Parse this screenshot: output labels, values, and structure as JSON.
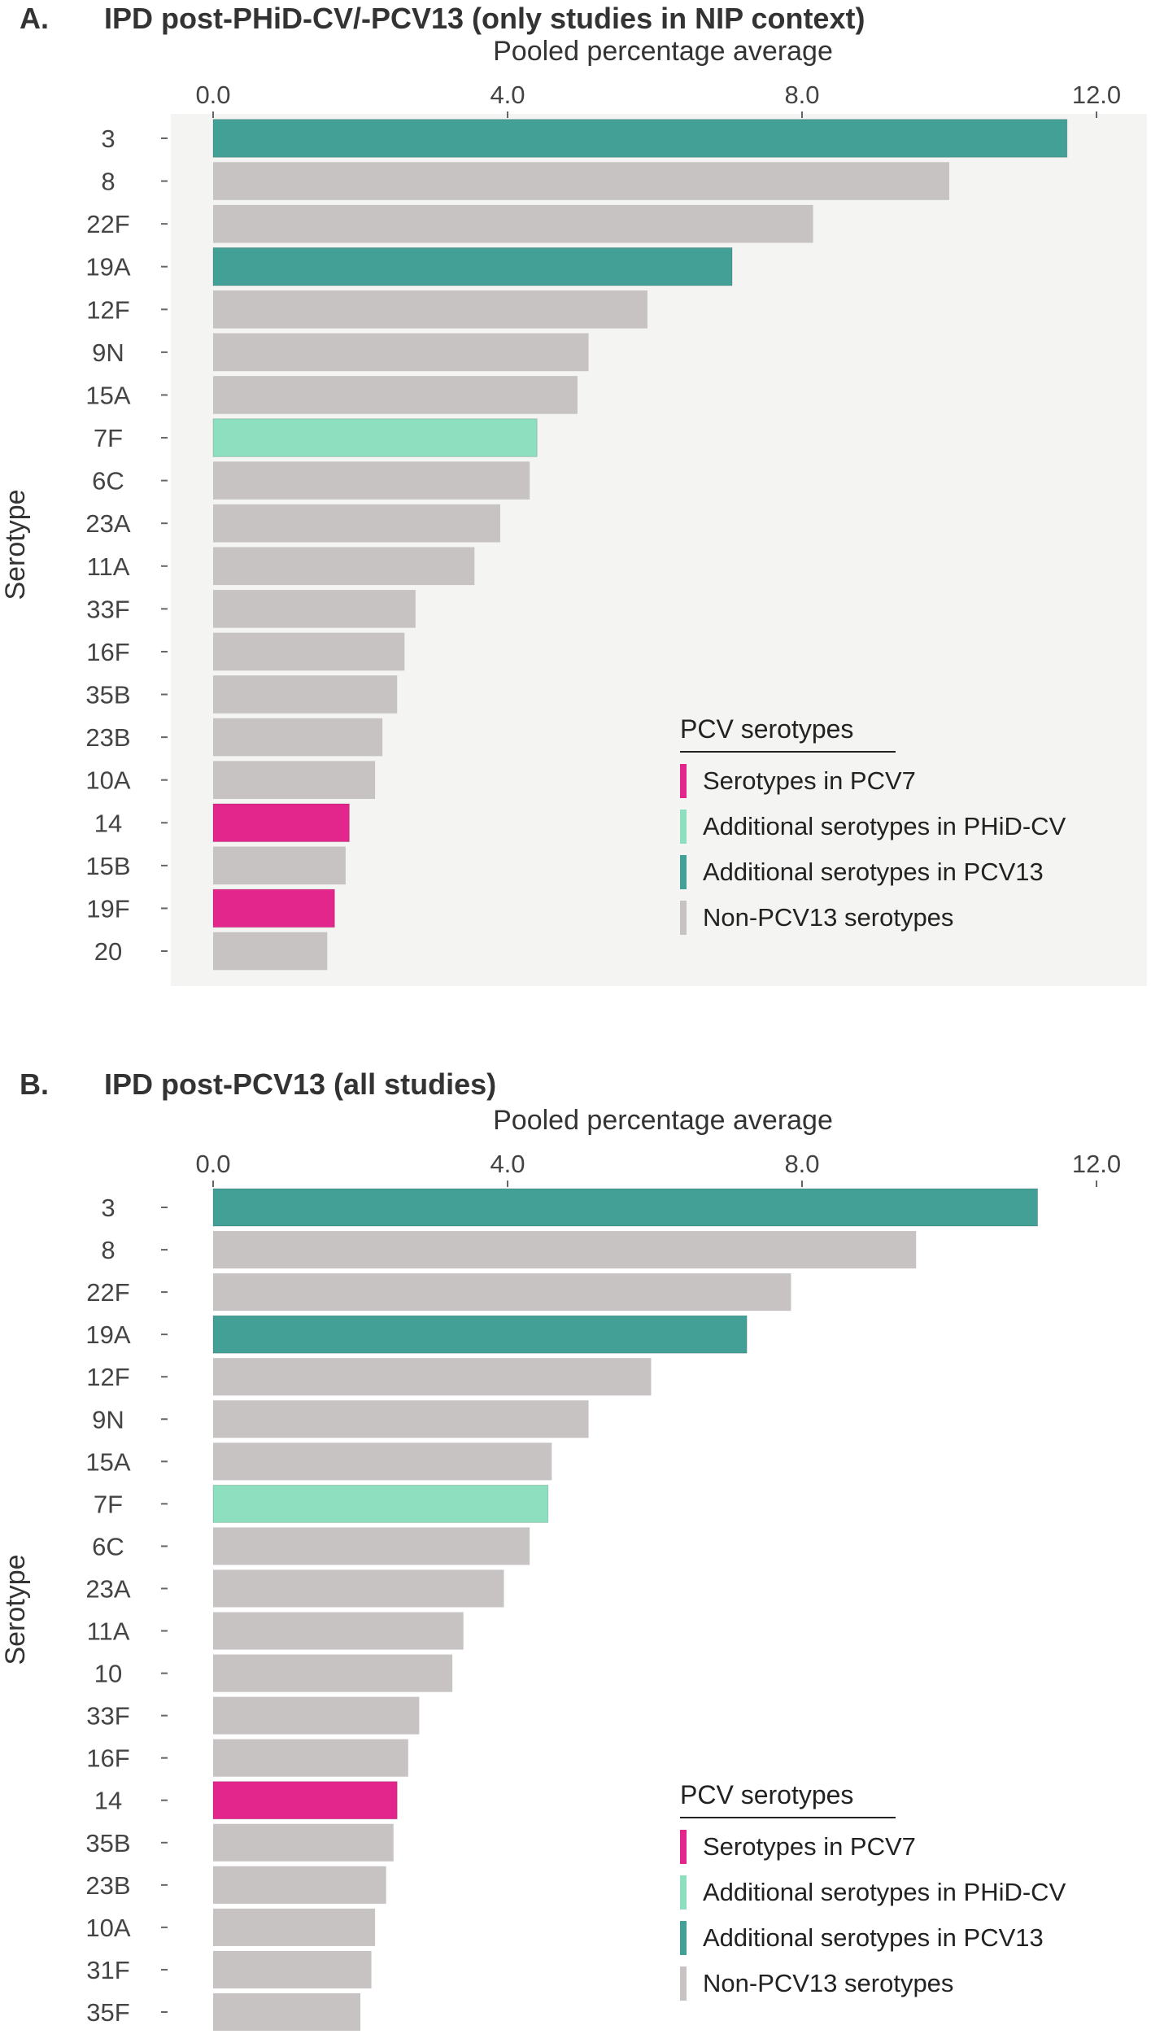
{
  "colors": {
    "pcv7": "#e3268c",
    "phid_cv": "#8ddfbf",
    "pcv13": "#42a097",
    "non_pcv13": "#c7c3c3",
    "plot_bg": "#f4f4f2"
  },
  "chart_data": [
    {
      "type": "bar",
      "orientation": "horizontal",
      "panel_label": "A.",
      "title": "IPD post-PHiD-CV/-PCV13 (only studies in NIP context)",
      "xlabel": "Pooled percentage average",
      "ylabel": "Serotype",
      "xlim": [
        0,
        12.0
      ],
      "xticks": [
        "0.0",
        "4.0",
        "8.0",
        "12.0"
      ],
      "xaxis_position": "top",
      "plot_background": "light-grey",
      "legend_placement": "bottom-right",
      "categories": [
        "3",
        "8",
        "22F",
        "19A",
        "12F",
        "9N",
        "15A",
        "7F",
        "6C",
        "23A",
        "11A",
        "33F",
        "16F",
        "35B",
        "23B",
        "10A",
        "14",
        "15B",
        "19F",
        "20"
      ],
      "values": [
        11.6,
        10.0,
        8.15,
        7.05,
        5.9,
        5.1,
        4.95,
        4.4,
        4.3,
        3.9,
        3.55,
        2.75,
        2.6,
        2.5,
        2.3,
        2.2,
        1.85,
        1.8,
        1.65,
        1.55
      ],
      "groups": [
        "pcv13",
        "non_pcv13",
        "non_pcv13",
        "pcv13",
        "non_pcv13",
        "non_pcv13",
        "non_pcv13",
        "phid_cv",
        "non_pcv13",
        "non_pcv13",
        "non_pcv13",
        "non_pcv13",
        "non_pcv13",
        "non_pcv13",
        "non_pcv13",
        "non_pcv13",
        "pcv7",
        "non_pcv13",
        "pcv7",
        "non_pcv13"
      ],
      "legend": {
        "title": "PCV serotypes",
        "entries": [
          {
            "key": "pcv7",
            "label": "Serotypes in PCV7"
          },
          {
            "key": "phid_cv",
            "label": "Additional serotypes in PHiD-CV"
          },
          {
            "key": "pcv13",
            "label": "Additional serotypes in PCV13"
          },
          {
            "key": "non_pcv13",
            "label": "Non-PCV13 serotypes"
          }
        ]
      }
    },
    {
      "type": "bar",
      "orientation": "horizontal",
      "panel_label": "B.",
      "title": "IPD post-PCV13 (all studies)",
      "xlabel": "Pooled percentage average",
      "ylabel": "Serotype",
      "xlim": [
        0,
        12.0
      ],
      "xticks": [
        "0.0",
        "4.0",
        "8.0",
        "12.0"
      ],
      "xaxis_position": "top",
      "plot_background": "white",
      "legend_placement": "bottom-right",
      "categories": [
        "3",
        "8",
        "22F",
        "19A",
        "12F",
        "9N",
        "15A",
        "7F",
        "6C",
        "23A",
        "11A",
        "10",
        "33F",
        "16F",
        "14",
        "35B",
        "23B",
        "10A",
        "31F",
        "35F"
      ],
      "values": [
        11.2,
        9.55,
        7.85,
        7.25,
        5.95,
        5.1,
        4.6,
        4.55,
        4.3,
        3.95,
        3.4,
        3.25,
        2.8,
        2.65,
        2.5,
        2.45,
        2.35,
        2.2,
        2.15,
        2.0
      ],
      "groups": [
        "pcv13",
        "non_pcv13",
        "non_pcv13",
        "pcv13",
        "non_pcv13",
        "non_pcv13",
        "non_pcv13",
        "phid_cv",
        "non_pcv13",
        "non_pcv13",
        "non_pcv13",
        "non_pcv13",
        "non_pcv13",
        "non_pcv13",
        "pcv7",
        "non_pcv13",
        "non_pcv13",
        "non_pcv13",
        "non_pcv13",
        "non_pcv13"
      ],
      "legend": {
        "title": "PCV serotypes",
        "entries": [
          {
            "key": "pcv7",
            "label": "Serotypes in PCV7"
          },
          {
            "key": "phid_cv",
            "label": "Additional serotypes in PHiD-CV"
          },
          {
            "key": "pcv13",
            "label": "Additional serotypes in PCV13"
          },
          {
            "key": "non_pcv13",
            "label": "Non-PCV13 serotypes"
          }
        ]
      }
    }
  ]
}
